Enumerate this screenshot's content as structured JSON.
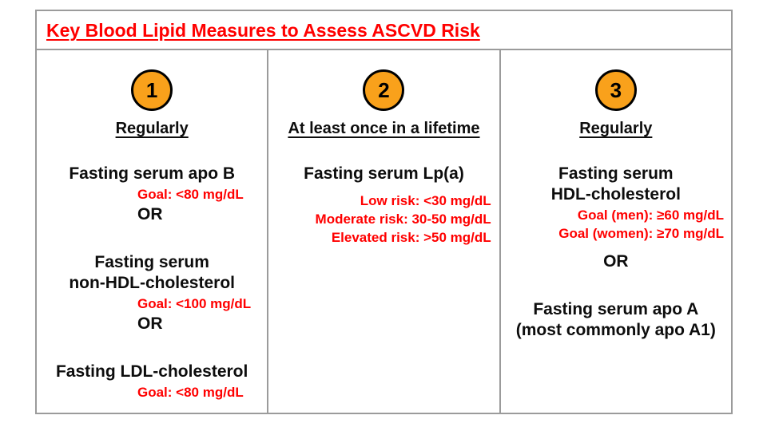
{
  "slide": {
    "title": "Key Blood Lipid Measures to Assess ASCVD Risk"
  },
  "colors": {
    "accent_red": "#FF0000",
    "circle_orange": "#F9A11B",
    "border_gray": "#9B9B9B",
    "text_black": "#0D0D0D"
  },
  "columns": [
    {
      "badge": "1",
      "frequency": "Regularly",
      "items": [
        {
          "kind": "measure",
          "text": "Fasting serum apo B"
        },
        {
          "kind": "goal",
          "text": "Goal: <80 mg/dL"
        },
        {
          "kind": "or",
          "text": "OR"
        },
        {
          "kind": "measure",
          "text": "Fasting serum\nnon-HDL-cholesterol"
        },
        {
          "kind": "goal",
          "text": "Goal: <100 mg/dL"
        },
        {
          "kind": "or",
          "text": "OR"
        },
        {
          "kind": "measure",
          "text": "Fasting LDL-cholesterol"
        },
        {
          "kind": "goal",
          "text": "Goal: <80 mg/dL"
        }
      ]
    },
    {
      "badge": "2",
      "frequency": "At least once in a lifetime",
      "items": [
        {
          "kind": "measure",
          "text": "Fasting serum Lp(a)"
        },
        {
          "kind": "goal",
          "text": "Low risk: <30 mg/dL"
        },
        {
          "kind": "goal",
          "text": "Moderate risk: 30-50 mg/dL"
        },
        {
          "kind": "goal",
          "text": "Elevated risk: >50 mg/dL"
        }
      ]
    },
    {
      "badge": "3",
      "frequency": "Regularly",
      "items": [
        {
          "kind": "measure",
          "text": "Fasting serum\nHDL-cholesterol"
        },
        {
          "kind": "goal",
          "text": "Goal (men): ≥60 mg/dL"
        },
        {
          "kind": "goal",
          "text": "Goal (women): ≥70 mg/dL"
        },
        {
          "kind": "or",
          "text": "OR"
        },
        {
          "kind": "measure",
          "text": "Fasting serum apo A\n(most commonly apo A1)"
        }
      ]
    }
  ]
}
